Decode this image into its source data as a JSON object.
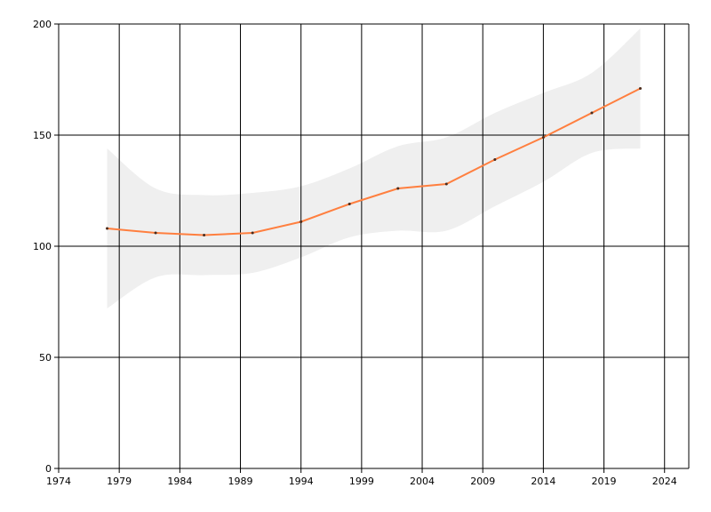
{
  "chart_data": {
    "type": "line",
    "title": "",
    "xlabel": "",
    "ylabel": "",
    "xlim": [
      1974,
      2026
    ],
    "ylim": [
      0,
      200
    ],
    "x_ticks": [
      "1974",
      "1979",
      "1984",
      "1989",
      "1994",
      "1999",
      "2004",
      "2009",
      "2014",
      "2019",
      "2024"
    ],
    "y_ticks": [
      "0",
      "50",
      "100",
      "150",
      "200"
    ],
    "grid": true,
    "legend": "none",
    "series": [
      {
        "color": "#ff7f3f",
        "x": [
          1978,
          1982,
          1986,
          1990,
          1994,
          1998,
          2002,
          2006,
          2010,
          2014,
          2018,
          2022
        ],
        "values": [
          108,
          106,
          105,
          106,
          111,
          119,
          126,
          128,
          139,
          149,
          160,
          171
        ]
      }
    ],
    "band": {
      "color": "#efefef",
      "x": [
        1978,
        1982,
        1986,
        1990,
        1994,
        1998,
        2002,
        2006,
        2010,
        2014,
        2018,
        2022
      ],
      "upper": [
        144,
        126,
        123,
        124,
        127,
        135,
        145,
        149,
        160,
        169,
        178,
        198
      ],
      "lower": [
        72,
        86,
        87,
        88,
        95,
        104,
        107,
        107,
        118,
        129,
        142,
        144
      ]
    }
  }
}
